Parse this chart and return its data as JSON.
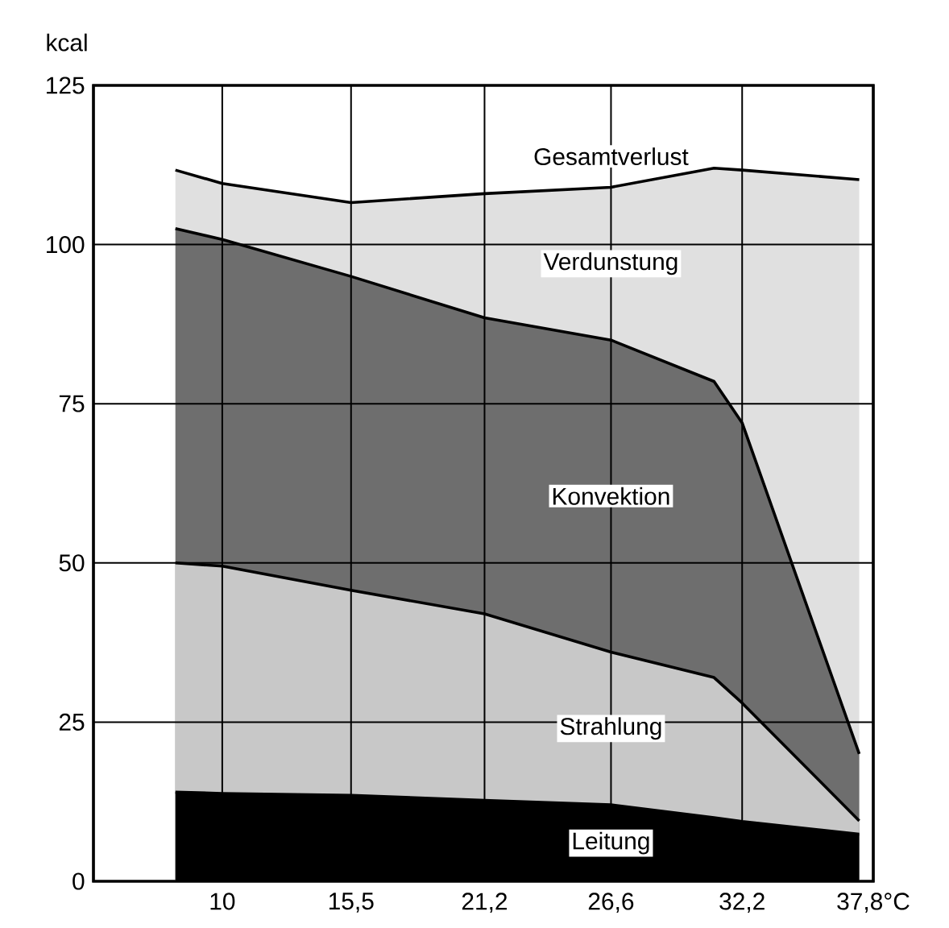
{
  "chart_data": {
    "type": "area",
    "ylabel": "kcal",
    "x": [
      8,
      10,
      15.5,
      21.2,
      26.6,
      31,
      32.2,
      37.2
    ],
    "xlim": [
      4.5,
      37.8
    ],
    "ylim": [
      0,
      125
    ],
    "xticks": [
      10,
      {
        "value": 15.5,
        "label": "15,5"
      },
      {
        "value": 21.2,
        "label": "21,2"
      },
      {
        "value": 26.6,
        "label": "26,6"
      },
      {
        "value": 32.2,
        "label": "32,2"
      },
      {
        "value": 37.8,
        "label": "37,8°C"
      }
    ],
    "yticks": [
      0,
      25,
      50,
      75,
      100,
      125
    ],
    "grid": true,
    "series": [
      {
        "name": "Verdunstung",
        "color": "#e0e0e0",
        "values": [
          111.7,
          109.6,
          106.6,
          108,
          109,
          112,
          111.7,
          110.2
        ]
      },
      {
        "name": "Konvektion",
        "color": "#6e6e6e",
        "values": [
          102.5,
          100.8,
          95,
          88.5,
          85,
          78.5,
          72,
          20
        ]
      },
      {
        "name": "Strahlung",
        "color": "#c8c8c8",
        "values": [
          50,
          49.5,
          45.7,
          42,
          36,
          32,
          28,
          9.5
        ]
      },
      {
        "name": "Leitung",
        "color": "#000000",
        "values": [
          14,
          13.8,
          13.5,
          12.7,
          12,
          10,
          9.4,
          7.4
        ]
      }
    ],
    "annotations": [
      {
        "text": "Gesamtverlust",
        "x": 26.6,
        "y": 109
      }
    ]
  }
}
